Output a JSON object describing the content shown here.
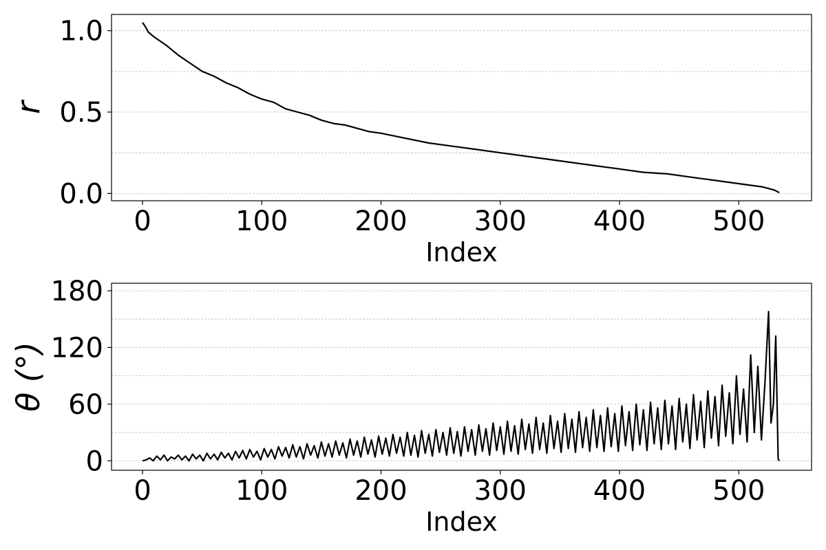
{
  "chart_data": [
    {
      "type": "line",
      "title": "",
      "xlabel": "Index",
      "ylabel": "r",
      "xlim": [
        -26,
        561
      ],
      "ylim": [
        -0.045,
        1.1
      ],
      "xticks": [
        0,
        100,
        200,
        300,
        400,
        500
      ],
      "xtick_labels": [
        "0",
        "100",
        "200",
        "300",
        "400",
        "500"
      ],
      "yticks": [
        0.0,
        0.5,
        1.0
      ],
      "ytick_labels": [
        "0.0",
        "0.5",
        "1.0"
      ],
      "y_gridlines": [
        0.0,
        0.25,
        0.5,
        0.75,
        1.0
      ],
      "grid": true,
      "legend": "none",
      "line_color": "#000000",
      "series": [
        {
          "x": [
            0,
            2,
            5,
            10,
            20,
            30,
            40,
            50,
            60,
            70,
            80,
            90,
            100,
            110,
            120,
            130,
            140,
            150,
            160,
            170,
            180,
            190,
            200,
            220,
            240,
            260,
            280,
            300,
            320,
            340,
            360,
            380,
            400,
            420,
            440,
            460,
            480,
            500,
            510,
            520,
            525,
            530,
            534
          ],
          "values": [
            1.05,
            1.03,
            0.99,
            0.96,
            0.91,
            0.85,
            0.8,
            0.75,
            0.72,
            0.68,
            0.65,
            0.61,
            0.58,
            0.56,
            0.52,
            0.5,
            0.48,
            0.45,
            0.43,
            0.42,
            0.4,
            0.38,
            0.37,
            0.34,
            0.31,
            0.29,
            0.27,
            0.25,
            0.23,
            0.21,
            0.19,
            0.17,
            0.15,
            0.13,
            0.12,
            0.1,
            0.08,
            0.06,
            0.05,
            0.04,
            0.03,
            0.02,
            0.005
          ]
        }
      ]
    },
    {
      "type": "line",
      "title": "",
      "xlabel": "Index",
      "ylabel": "θ (°)",
      "xlim": [
        -26,
        561
      ],
      "ylim": [
        -10,
        188
      ],
      "xticks": [
        0,
        100,
        200,
        300,
        400,
        500
      ],
      "xtick_labels": [
        "0",
        "100",
        "200",
        "300",
        "400",
        "500"
      ],
      "yticks": [
        0,
        60,
        120,
        180
      ],
      "ytick_labels": [
        "0",
        "60",
        "120",
        "180"
      ],
      "y_gridlines": [
        0,
        30,
        60,
        90,
        120,
        150,
        180
      ],
      "grid": true,
      "legend": "none",
      "line_color": "#000000",
      "series": [
        {
          "x": [
            0,
            3,
            6,
            9,
            12,
            15,
            18,
            21,
            24,
            27,
            30,
            33,
            36,
            39,
            42,
            45,
            48,
            51,
            54,
            57,
            60,
            63,
            66,
            69,
            72,
            75,
            78,
            81,
            84,
            87,
            90,
            93,
            96,
            99,
            102,
            105,
            108,
            111,
            114,
            117,
            120,
            123,
            126,
            129,
            132,
            135,
            138,
            141,
            144,
            147,
            150,
            153,
            156,
            159,
            162,
            165,
            168,
            171,
            174,
            177,
            180,
            183,
            186,
            189,
            192,
            195,
            198,
            201,
            204,
            207,
            210,
            213,
            216,
            219,
            222,
            225,
            228,
            231,
            234,
            237,
            240,
            243,
            246,
            249,
            252,
            255,
            258,
            261,
            264,
            267,
            270,
            273,
            276,
            279,
            282,
            285,
            288,
            291,
            294,
            297,
            300,
            303,
            306,
            309,
            312,
            315,
            318,
            321,
            324,
            327,
            330,
            333,
            336,
            339,
            342,
            345,
            348,
            351,
            354,
            357,
            360,
            363,
            366,
            369,
            372,
            375,
            378,
            381,
            384,
            387,
            390,
            393,
            396,
            399,
            402,
            405,
            408,
            411,
            414,
            417,
            420,
            423,
            426,
            429,
            432,
            435,
            438,
            441,
            444,
            447,
            450,
            453,
            456,
            459,
            462,
            465,
            468,
            471,
            474,
            477,
            480,
            483,
            486,
            489,
            492,
            495,
            498,
            501,
            504,
            507,
            510,
            513,
            516,
            519,
            522,
            525,
            527,
            529,
            531,
            533,
            534
          ],
          "values": [
            0,
            1,
            3,
            0,
            5,
            1,
            6,
            0,
            4,
            2,
            6,
            1,
            5,
            0,
            7,
            2,
            6,
            0,
            8,
            2,
            7,
            1,
            9,
            3,
            8,
            1,
            10,
            3,
            11,
            2,
            12,
            4,
            10,
            1,
            13,
            4,
            12,
            2,
            15,
            5,
            14,
            3,
            17,
            4,
            15,
            2,
            18,
            6,
            16,
            3,
            20,
            5,
            18,
            4,
            21,
            6,
            19,
            3,
            23,
            6,
            21,
            4,
            25,
            7,
            22,
            4,
            26,
            7,
            24,
            5,
            28,
            8,
            25,
            5,
            30,
            6,
            27,
            4,
            32,
            8,
            28,
            5,
            33,
            9,
            30,
            6,
            35,
            8,
            31,
            5,
            36,
            10,
            33,
            6,
            38,
            10,
            34,
            6,
            40,
            11,
            36,
            7,
            42,
            10,
            37,
            7,
            44,
            12,
            39,
            8,
            46,
            12,
            40,
            8,
            48,
            13,
            42,
            9,
            50,
            13,
            44,
            9,
            52,
            14,
            46,
            10,
            54,
            14,
            48,
            10,
            56,
            15,
            50,
            10,
            58,
            16,
            52,
            11,
            60,
            17,
            54,
            11,
            62,
            18,
            56,
            12,
            64,
            18,
            58,
            12,
            66,
            20,
            60,
            13,
            70,
            22,
            63,
            14,
            74,
            24,
            68,
            16,
            80,
            26,
            72,
            18,
            90,
            28,
            76,
            20,
            112,
            30,
            100,
            22,
            84,
            158,
            40,
            60,
            132,
            2,
            0
          ]
        }
      ]
    }
  ]
}
